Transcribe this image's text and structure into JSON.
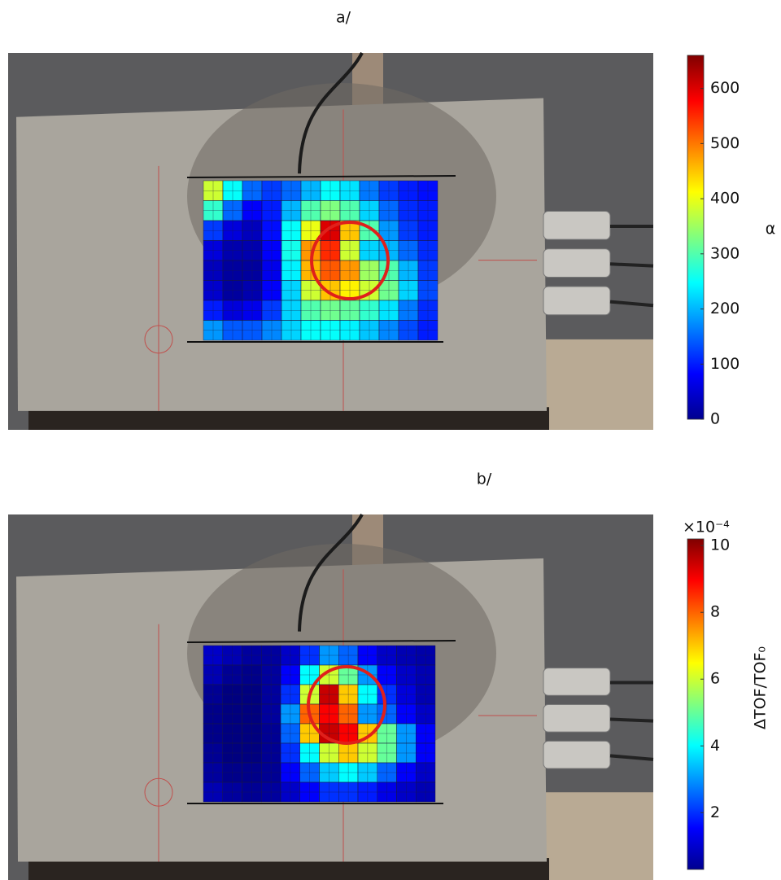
{
  "chart_data": [
    {
      "type": "heatmap",
      "title": "a/",
      "colormap": "jet",
      "colorbar_label": "α",
      "zlim": [
        0,
        660
      ],
      "zticks": [
        0,
        100,
        200,
        300,
        400,
        500,
        600
      ],
      "values": [
        [
          380,
          250,
          150,
          120,
          150,
          200,
          250,
          230,
          160,
          120,
          100,
          90
        ],
        [
          280,
          150,
          80,
          100,
          200,
          300,
          330,
          300,
          220,
          150,
          110,
          100
        ],
        [
          120,
          60,
          40,
          90,
          250,
          400,
          600,
          450,
          300,
          180,
          120,
          100
        ],
        [
          60,
          30,
          30,
          80,
          260,
          480,
          550,
          380,
          220,
          200,
          150,
          110
        ],
        [
          40,
          20,
          20,
          70,
          240,
          460,
          520,
          480,
          350,
          300,
          200,
          120
        ],
        [
          50,
          20,
          30,
          80,
          220,
          380,
          450,
          420,
          380,
          320,
          220,
          130
        ],
        [
          100,
          60,
          70,
          120,
          220,
          300,
          320,
          310,
          280,
          230,
          160,
          110
        ],
        [
          180,
          140,
          140,
          170,
          220,
          250,
          250,
          240,
          210,
          170,
          130,
          100
        ]
      ]
    },
    {
      "type": "heatmap",
      "title": "b/",
      "colormap": "jet",
      "colorbar_label": "ΔTOF/TOF₀",
      "colorbar_exponent": "×10⁻⁴",
      "zlim": [
        0.3,
        10.2
      ],
      "zticks": [
        2,
        4,
        6,
        8,
        10
      ],
      "values": [
        [
          1,
          0.8,
          0.6,
          0.6,
          1,
          2,
          3,
          2.5,
          1.5,
          1,
          0.8,
          0.7
        ],
        [
          0.8,
          0.5,
          0.4,
          0.6,
          1.5,
          4,
          6,
          5,
          3,
          1.5,
          1,
          0.8
        ],
        [
          0.5,
          0.3,
          0.3,
          0.6,
          2,
          6,
          9.5,
          7,
          4,
          2,
          1.2,
          0.8
        ],
        [
          0.4,
          0.3,
          0.3,
          0.6,
          3,
          8,
          9,
          8,
          3,
          2.5,
          1.5,
          1
        ],
        [
          0.4,
          0.3,
          0.3,
          0.5,
          2.5,
          7,
          9.5,
          9,
          7,
          5,
          3,
          1.5
        ],
        [
          0.5,
          0.3,
          0.3,
          0.5,
          2,
          4,
          6,
          7,
          6,
          5,
          3,
          1.5
        ],
        [
          0.6,
          0.4,
          0.4,
          0.5,
          1.5,
          2.5,
          3.5,
          4,
          3.5,
          2.5,
          1.5,
          1
        ],
        [
          0.8,
          0.6,
          0.5,
          0.6,
          1,
          1.5,
          2,
          2,
          1.8,
          1.3,
          1,
          0.8
        ]
      ]
    }
  ]
}
